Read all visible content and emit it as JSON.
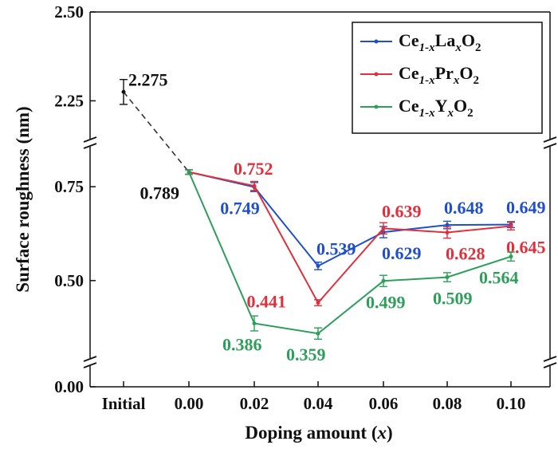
{
  "chart_data": {
    "type": "line",
    "title": "",
    "xlabel": "Doping amount",
    "xlabel_var": "x",
    "ylabel": "Surface roughness (nm)",
    "categories": [
      "Initial",
      "0.00",
      "0.02",
      "0.04",
      "0.06",
      "0.08",
      "0.10"
    ],
    "y_axis_segments": [
      {
        "range": [
          0,
          0.05
        ],
        "ticks": [
          "0.00"
        ]
      },
      {
        "range": [
          0.3,
          0.85
        ],
        "ticks": [
          "0.50",
          "0.75"
        ]
      },
      {
        "range": [
          2.15,
          2.5
        ],
        "ticks": [
          "2.25",
          "2.50"
        ]
      }
    ],
    "axis_break": "double-slash",
    "grid": false,
    "legend_position": "top-right",
    "initial": {
      "x": "Initial",
      "value": 2.275,
      "label": "2.275",
      "err": 0.035,
      "color": "#111111"
    },
    "connector": {
      "from": "Initial",
      "to": "0.00",
      "style": "dashed"
    },
    "series": [
      {
        "name": "Ce1-xLaxO2",
        "name_parts": {
          "base": "Ce",
          "sub1": "1-x",
          "mid": "La",
          "sub2": "x",
          "end": "O",
          "sub3": "2"
        },
        "color": "#1f4fc9",
        "x": [
          "0.00",
          "0.02",
          "0.04",
          "0.06",
          "0.08",
          "0.10"
        ],
        "values": [
          0.789,
          0.749,
          0.539,
          0.629,
          0.648,
          0.649
        ],
        "errors": [
          0.006,
          0.012,
          0.01,
          0.015,
          0.01,
          0.008
        ],
        "labels": [
          "",
          "0.749",
          "0.539",
          "0.629",
          "0.648",
          "0.649"
        ]
      },
      {
        "name": "Ce1-xPrxO2",
        "name_parts": {
          "base": "Ce",
          "sub1": "1-x",
          "mid": "Pr",
          "sub2": "x",
          "end": "O",
          "sub3": "2"
        },
        "color": "#e0303c",
        "x": [
          "0.00",
          "0.02",
          "0.04",
          "0.06",
          "0.08",
          "0.10"
        ],
        "values": [
          0.789,
          0.752,
          0.441,
          0.639,
          0.628,
          0.645
        ],
        "errors": [
          0.006,
          0.012,
          0.008,
          0.015,
          0.015,
          0.01
        ],
        "labels": [
          "",
          "0.752",
          "0.441",
          "0.639",
          "0.628",
          "0.645"
        ]
      },
      {
        "name": "Ce1-xYxO2",
        "name_parts": {
          "base": "Ce",
          "sub1": "1-x",
          "mid": "Y",
          "sub2": "x",
          "end": "O",
          "sub3": "2"
        },
        "color": "#2e9e5b",
        "x": [
          "0.00",
          "0.02",
          "0.04",
          "0.06",
          "0.08",
          "0.10"
        ],
        "values": [
          0.789,
          0.386,
          0.359,
          0.499,
          0.509,
          0.564
        ],
        "errors": [
          0.006,
          0.02,
          0.015,
          0.015,
          0.012,
          0.012
        ],
        "labels": [
          "",
          "0.386",
          "0.359",
          "0.499",
          "0.509",
          "0.564"
        ]
      }
    ],
    "shared_label": {
      "x": "0.00",
      "value": 0.789,
      "label": "0.789"
    }
  }
}
